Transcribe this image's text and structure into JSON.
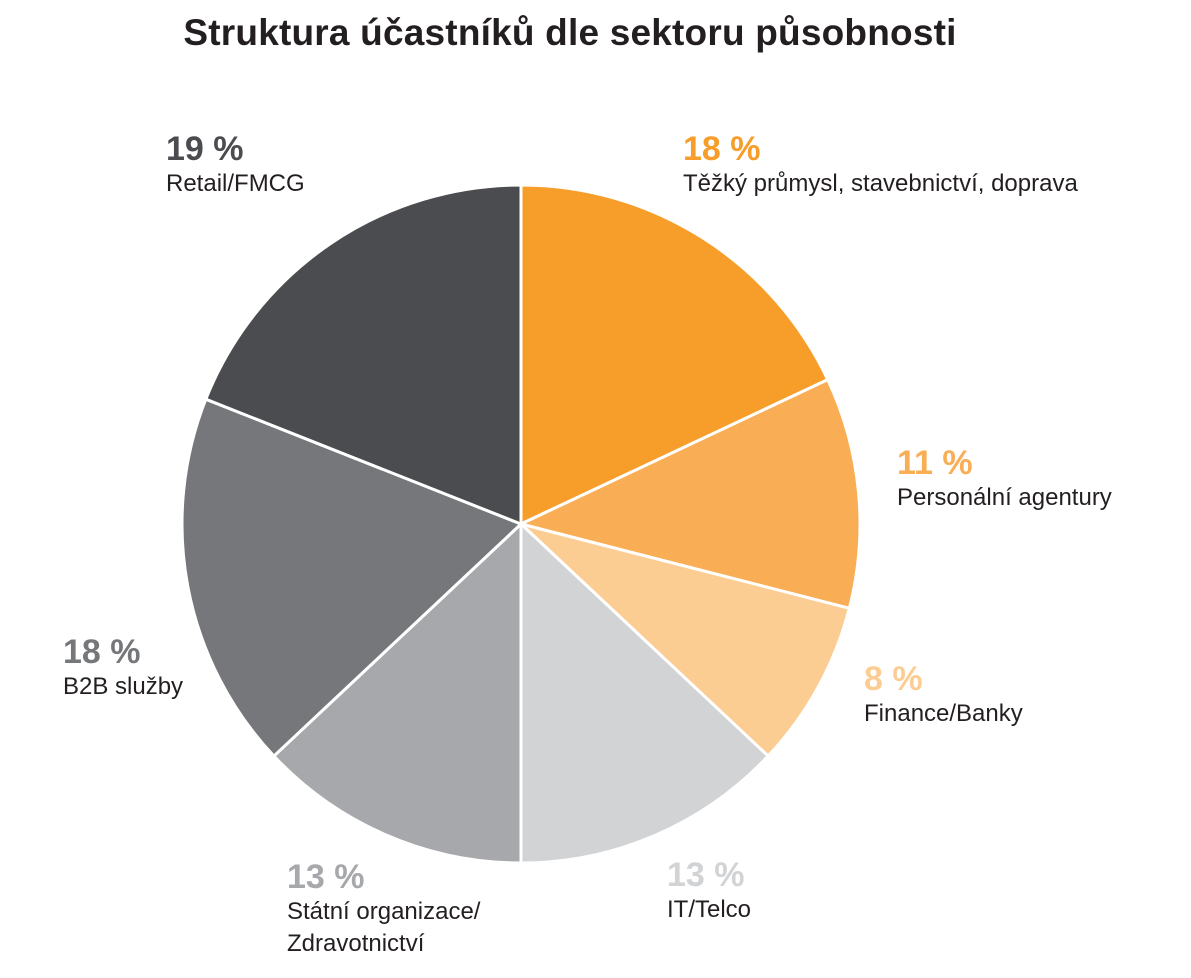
{
  "chart_data": {
    "type": "pie",
    "title": "Struktura účastníků dle sektoru působnosti",
    "slices": [
      {
        "pct_label": "18 %",
        "label": "Těžký průmysl, stavebnictví, doprava",
        "value": 18,
        "color": "#F79D2A"
      },
      {
        "pct_label": "11 %",
        "label": "Personální agentury",
        "value": 11,
        "color": "#F9AE55"
      },
      {
        "pct_label": "8 %",
        "label": "Finance/Banky",
        "value": 8,
        "color": "#FCCD92"
      },
      {
        "pct_label": "13 %",
        "label": "IT/Telco",
        "value": 13,
        "color": "#D2D3D5"
      },
      {
        "pct_label": "13 %",
        "label": "Státní organizace/\nZdravotnictví",
        "value": 13,
        "color": "#A7A8AB"
      },
      {
        "pct_label": "18 %",
        "label": "B2B služby",
        "value": 18,
        "color": "#76777A"
      },
      {
        "pct_label": "19 %",
        "label": "Retail/FMCG",
        "value": 19,
        "color": "#4B4C4F"
      }
    ]
  }
}
